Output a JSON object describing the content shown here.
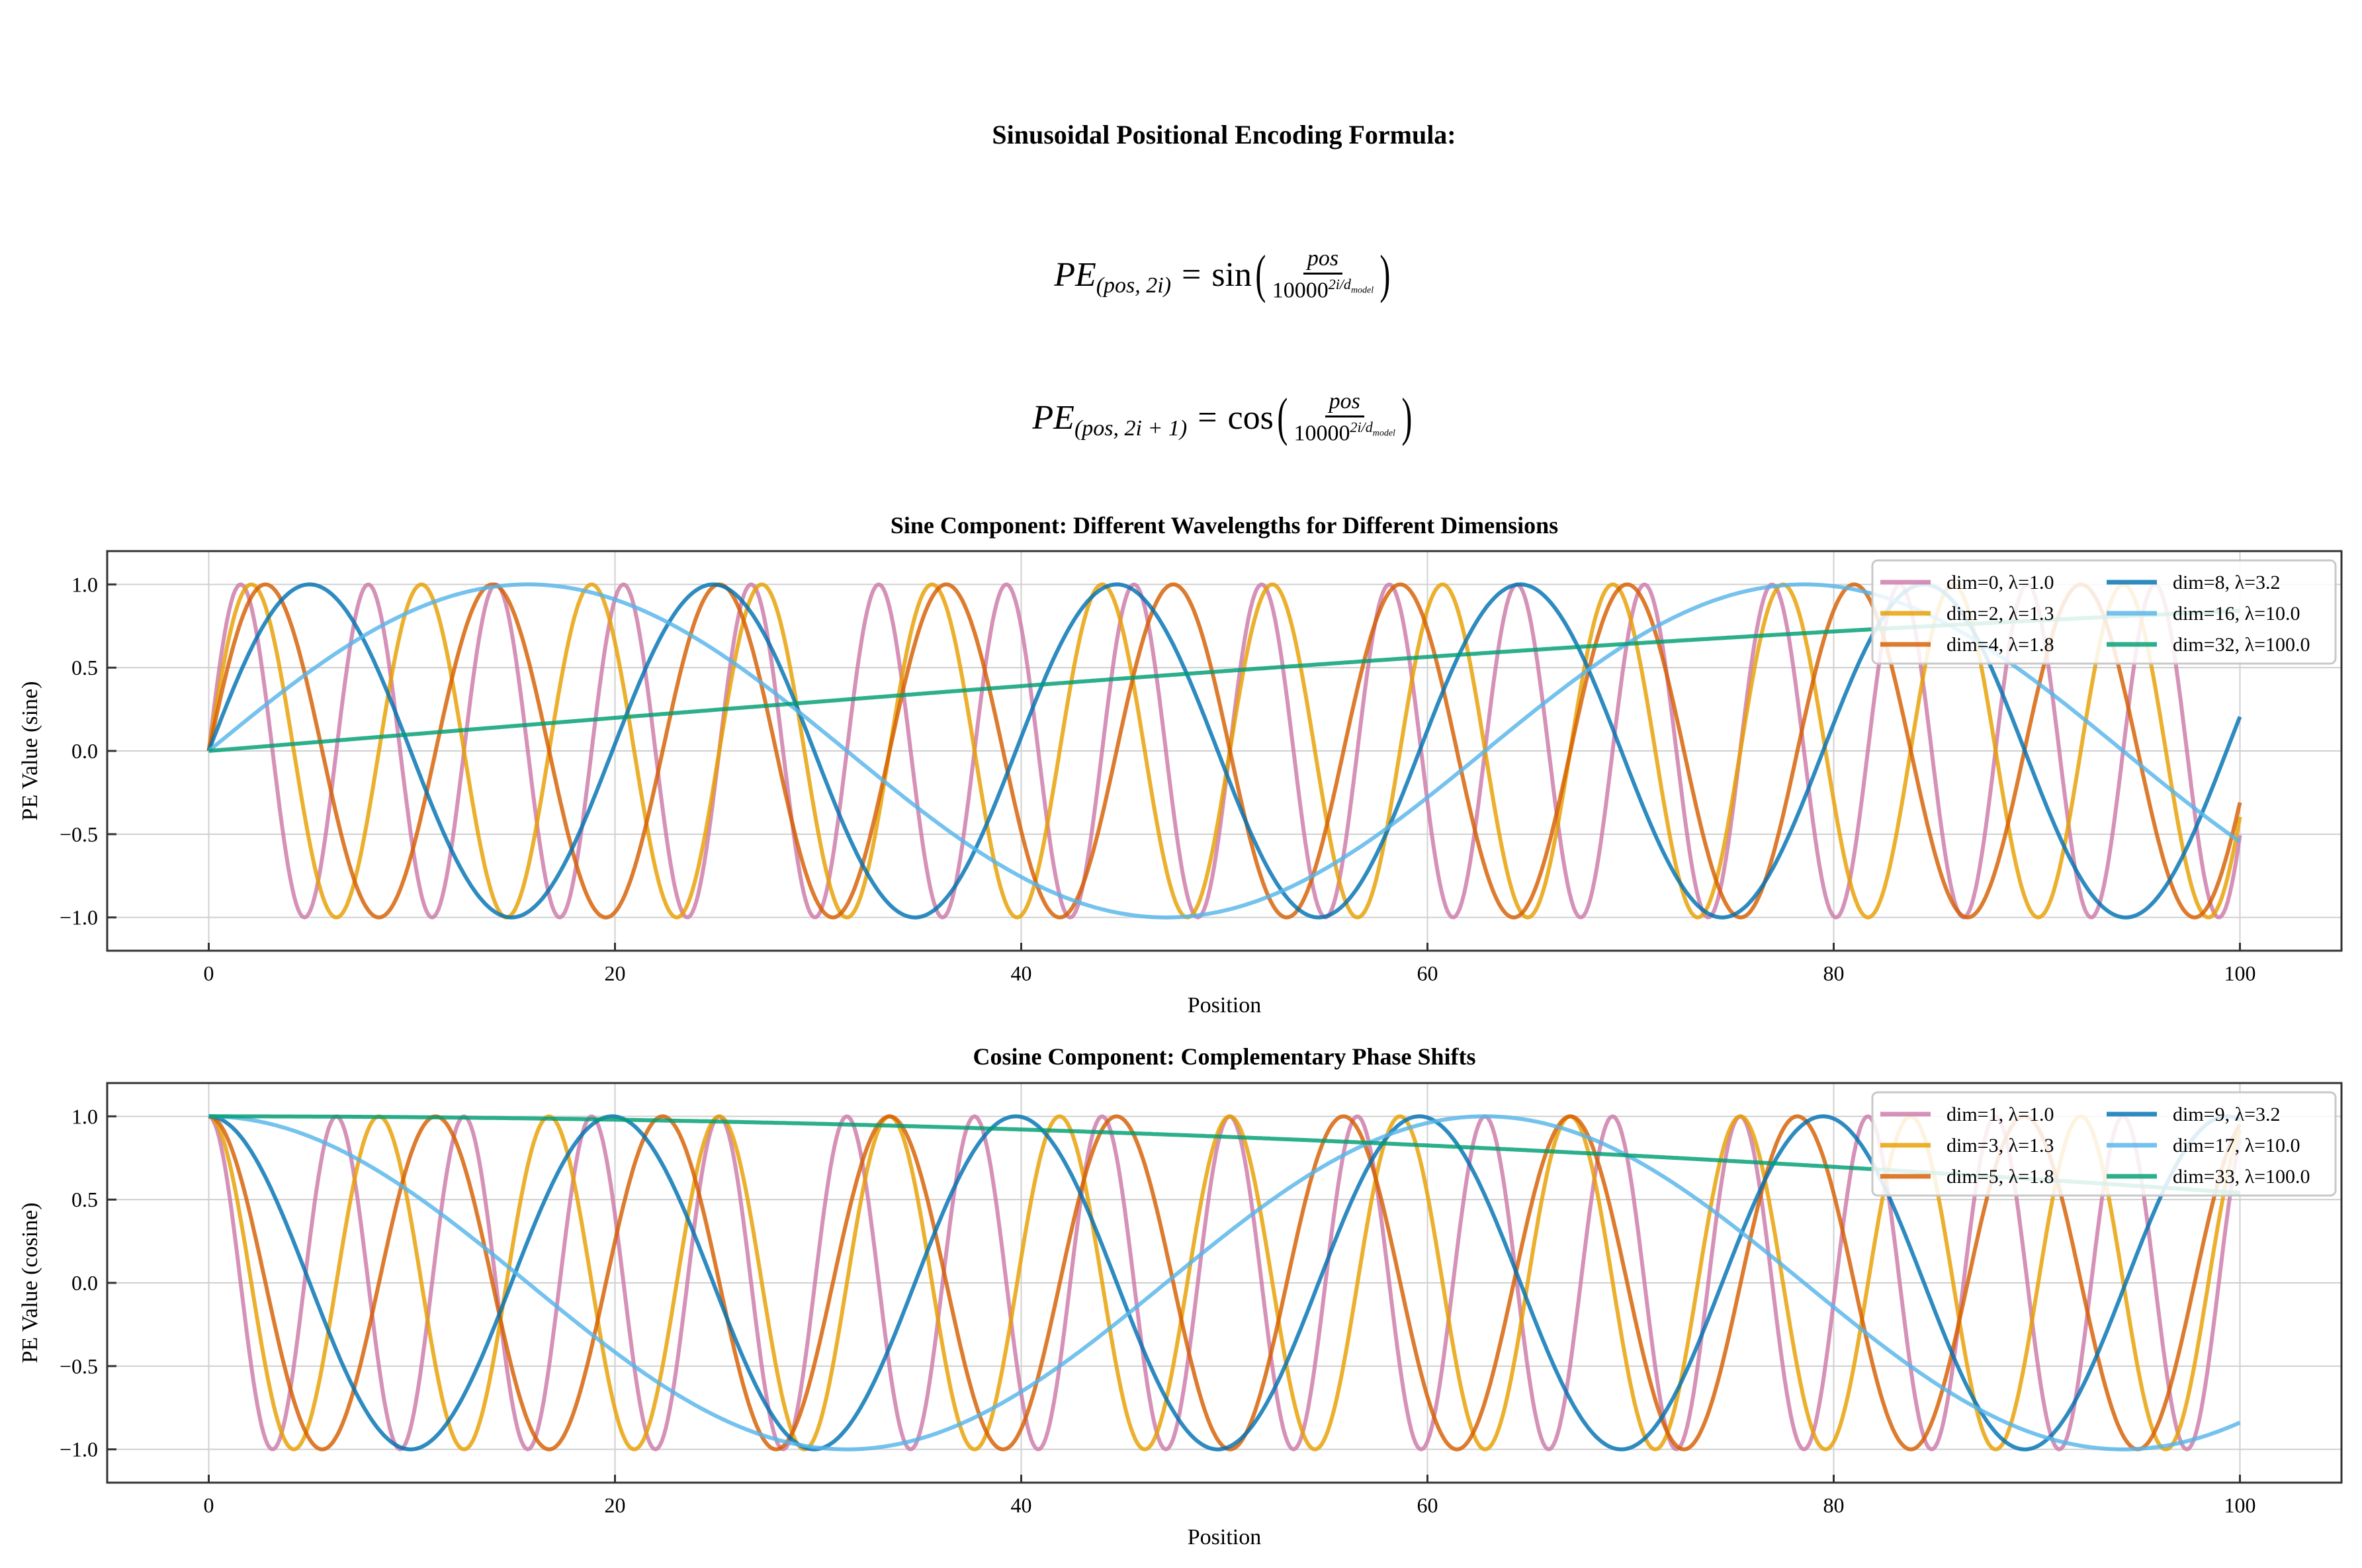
{
  "figure": {
    "suptitle": "Sinusoidal Positional Encoding Formula:",
    "formula_sin": {
      "lhs": "PE",
      "sub": "(pos, 2i)",
      "eq": "=",
      "fn": "sin",
      "num": "pos",
      "den_base": "10000",
      "den_exp": "2i/d",
      "den_exp_sub": "model"
    },
    "formula_cos": {
      "lhs": "PE",
      "sub": "(pos, 2i + 1)",
      "eq": "=",
      "fn": "cos",
      "num": "pos",
      "den_base": "10000",
      "den_exp": "2i/d",
      "den_exp_sub": "model"
    }
  },
  "chart_data": [
    {
      "type": "line",
      "title": "Sine Component: Different Wavelengths for Different Dimensions",
      "xlabel": "Position",
      "ylabel": "PE Value (sine)",
      "xlim": [
        -5,
        105
      ],
      "ylim": [
        -1.2,
        1.2
      ],
      "x_range": [
        0,
        100
      ],
      "xticks": [
        "0",
        "20",
        "40",
        "60",
        "80",
        "100"
      ],
      "yticks": [
        "−1.0",
        "−0.5",
        "0.0",
        "0.5",
        "1.0"
      ],
      "grid": true,
      "legend_position": "top-right",
      "function": "sin",
      "series": [
        {
          "name": "dim=0, λ=1.0",
          "dim": 0,
          "wavelength": 1.0,
          "color": "#CC79A7"
        },
        {
          "name": "dim=2, λ=1.3",
          "dim": 2,
          "wavelength": 1.3335,
          "color": "#E69F00"
        },
        {
          "name": "dim=4, λ=1.8",
          "dim": 4,
          "wavelength": 1.7783,
          "color": "#D55E00"
        },
        {
          "name": "dim=8, λ=3.2",
          "dim": 8,
          "wavelength": 3.1623,
          "color": "#0072B2"
        },
        {
          "name": "dim=16, λ=10.0",
          "dim": 16,
          "wavelength": 10.0,
          "color": "#56B4E9"
        },
        {
          "name": "dim=32, λ=100.0",
          "dim": 32,
          "wavelength": 100.0,
          "color": "#009E73"
        }
      ]
    },
    {
      "type": "line",
      "title": "Cosine Component: Complementary Phase Shifts",
      "xlabel": "Position",
      "ylabel": "PE Value (cosine)",
      "xlim": [
        -5,
        105
      ],
      "ylim": [
        -1.2,
        1.2
      ],
      "x_range": [
        0,
        100
      ],
      "xticks": [
        "0",
        "20",
        "40",
        "60",
        "80",
        "100"
      ],
      "yticks": [
        "−1.0",
        "−0.5",
        "0.0",
        "0.5",
        "1.0"
      ],
      "grid": true,
      "legend_position": "top-right",
      "function": "cos",
      "series": [
        {
          "name": "dim=1, λ=1.0",
          "dim": 1,
          "wavelength": 1.0,
          "color": "#CC79A7"
        },
        {
          "name": "dim=3, λ=1.3",
          "dim": 3,
          "wavelength": 1.3335,
          "color": "#E69F00"
        },
        {
          "name": "dim=5, λ=1.8",
          "dim": 5,
          "wavelength": 1.7783,
          "color": "#D55E00"
        },
        {
          "name": "dim=9, λ=3.2",
          "dim": 9,
          "wavelength": 3.1623,
          "color": "#0072B2"
        },
        {
          "name": "dim=17, λ=10.0",
          "dim": 17,
          "wavelength": 10.0,
          "color": "#56B4E9"
        },
        {
          "name": "dim=33, λ=100.0",
          "dim": 33,
          "wavelength": 100.0,
          "color": "#009E73"
        }
      ]
    }
  ]
}
